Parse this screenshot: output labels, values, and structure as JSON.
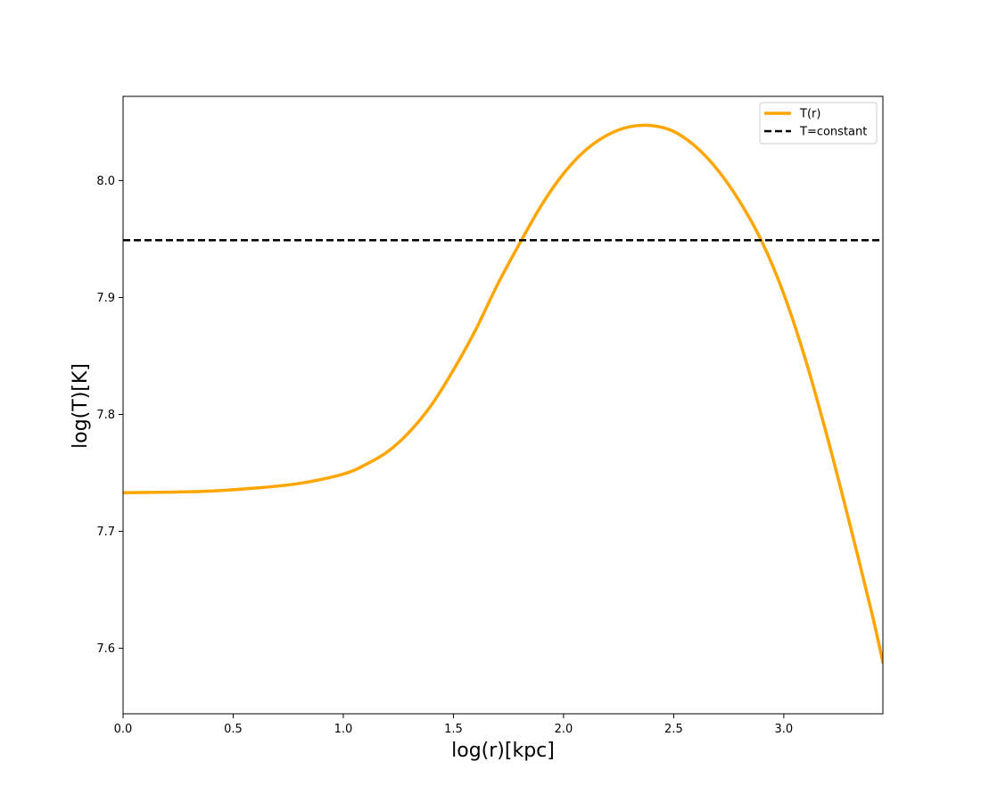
{
  "chart_data": {
    "type": "line",
    "title": "",
    "xlabel": "log(r)[kpc]",
    "ylabel": "log(T)[K]",
    "xlim": [
      0.0,
      3.45
    ],
    "ylim": [
      7.544,
      8.072
    ],
    "xticks": [
      0.0,
      0.5,
      1.0,
      1.5,
      2.0,
      2.5,
      3.0
    ],
    "xtick_labels": [
      "0.0",
      "0.5",
      "1.0",
      "1.5",
      "2.0",
      "2.5",
      "3.0"
    ],
    "yticks": [
      7.6,
      7.7,
      7.8,
      7.9,
      8.0
    ],
    "ytick_labels": [
      "7.6",
      "7.7",
      "7.8",
      "7.9",
      "8.0"
    ],
    "grid": false,
    "legend_position": "top-right",
    "series": [
      {
        "name": "T(r)",
        "color": "#FFA500",
        "style": "solid",
        "x": [
          0.0,
          0.2,
          0.4,
          0.6,
          0.8,
          1.0,
          1.1,
          1.2,
          1.3,
          1.4,
          1.5,
          1.6,
          1.7,
          1.8,
          1.9,
          2.0,
          2.1,
          2.2,
          2.3,
          2.4,
          2.5,
          2.6,
          2.7,
          2.8,
          2.9,
          3.0,
          3.1,
          3.2,
          3.3,
          3.4,
          3.45
        ],
        "y": [
          7.733,
          7.7335,
          7.7345,
          7.737,
          7.741,
          7.749,
          7.757,
          7.768,
          7.785,
          7.808,
          7.838,
          7.872,
          7.911,
          7.946,
          7.979,
          8.006,
          8.026,
          8.039,
          8.046,
          8.047,
          8.042,
          8.029,
          8.009,
          7.982,
          7.948,
          7.903,
          7.846,
          7.779,
          7.706,
          7.63,
          7.588
        ]
      },
      {
        "name": "T=constant",
        "color": "#000000",
        "style": "dashed",
        "x": [
          0.0,
          3.45
        ],
        "y": [
          7.949,
          7.949
        ]
      }
    ]
  }
}
